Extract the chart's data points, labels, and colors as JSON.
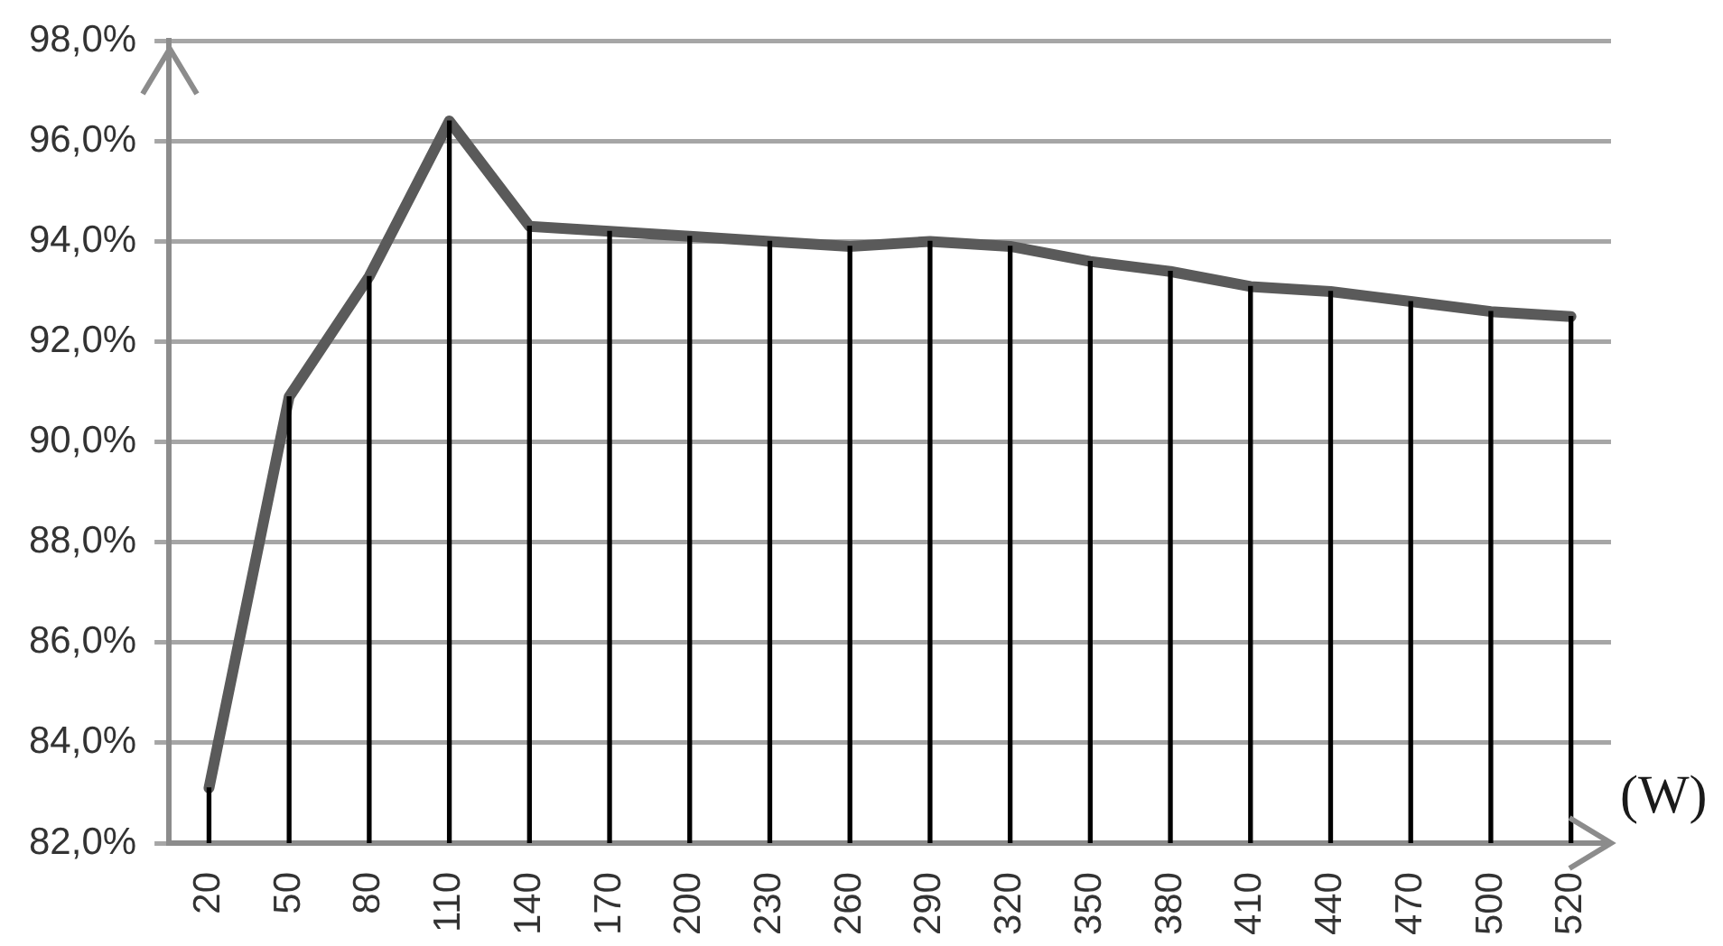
{
  "chart_data": {
    "type": "line",
    "xlabel": "(W)",
    "categories": [
      "20",
      "50",
      "80",
      "110",
      "140",
      "170",
      "200",
      "230",
      "260",
      "290",
      "320",
      "350",
      "380",
      "410",
      "440",
      "470",
      "500",
      "520"
    ],
    "series": [
      {
        "type": "bar",
        "color": "#000000",
        "values": [
          83.1,
          90.9,
          93.3,
          96.4,
          94.3,
          94.2,
          94.1,
          94.0,
          93.9,
          94.0,
          93.9,
          93.6,
          93.4,
          93.1,
          93.0,
          92.8,
          92.6,
          92.5
        ]
      },
      {
        "color": "#5a5a5a",
        "values": [
          83.1,
          90.9,
          93.3,
          96.4,
          94.3,
          94.2,
          94.1,
          94.0,
          93.9,
          94.0,
          93.9,
          93.6,
          93.4,
          93.1,
          93.0,
          92.8,
          92.6,
          92.5
        ]
      }
    ],
    "ylim": [
      82,
      98
    ],
    "yticks": [
      {
        "value": 82,
        "label": "82,0%"
      },
      {
        "value": 84,
        "label": "84,0%"
      },
      {
        "value": 86,
        "label": "86,0%"
      },
      {
        "value": 88,
        "label": "88,0%"
      },
      {
        "value": 90,
        "label": "90,0%"
      },
      {
        "value": 92,
        "label": "92,0%"
      },
      {
        "value": 94,
        "label": "94,0%"
      },
      {
        "value": 96,
        "label": "96,0%"
      },
      {
        "value": 98,
        "label": "98,0%"
      }
    ],
    "grid": "y"
  }
}
